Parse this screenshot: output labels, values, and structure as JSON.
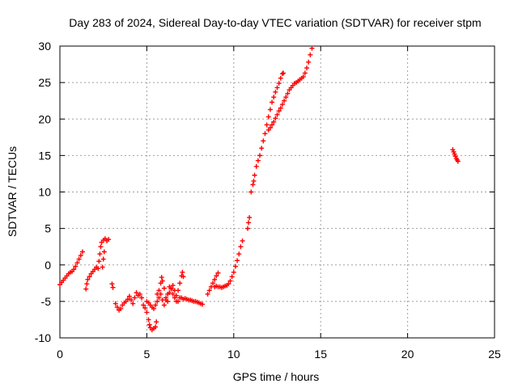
{
  "chart_data": {
    "type": "scatter",
    "title": "Day 283 of 2024, Sidereal Day-to-day VTEC variation (SDTVAR) for receiver stpm",
    "xlabel": "GPS time / hours",
    "ylabel": "SDTVAR / TECUs",
    "xlim": [
      0,
      25
    ],
    "ylim": [
      -10,
      30
    ],
    "xticks": [
      0,
      5,
      10,
      15,
      20,
      25
    ],
    "yticks": [
      -10,
      -5,
      0,
      5,
      10,
      15,
      20,
      25,
      30
    ],
    "grid": true,
    "marker": "+",
    "color": "#ff0000",
    "series": [
      {
        "points": [
          [
            0.0,
            -2.7
          ],
          [
            0.1,
            -2.4
          ],
          [
            0.2,
            -2.1
          ],
          [
            0.3,
            -1.8
          ],
          [
            0.4,
            -1.5
          ],
          [
            0.5,
            -1.2
          ],
          [
            0.6,
            -1.0
          ],
          [
            0.7,
            -0.9
          ],
          [
            0.8,
            -0.6
          ],
          [
            0.9,
            -0.2
          ],
          [
            1.0,
            0.3
          ],
          [
            1.1,
            0.8
          ],
          [
            1.2,
            1.3
          ],
          [
            1.3,
            1.8
          ],
          [
            1.5,
            -3.3
          ],
          [
            1.55,
            -2.6
          ],
          [
            1.6,
            -2.0
          ],
          [
            1.7,
            -1.6
          ],
          [
            1.8,
            -1.2
          ],
          [
            1.9,
            -0.9
          ],
          [
            2.0,
            -0.6
          ],
          [
            2.1,
            -0.3
          ],
          [
            2.2,
            -0.5
          ],
          [
            2.25,
            0.5
          ],
          [
            2.3,
            1.5
          ],
          [
            2.35,
            2.5
          ],
          [
            2.4,
            3.1
          ],
          [
            2.5,
            3.4
          ],
          [
            2.6,
            3.6
          ],
          [
            2.7,
            3.3
          ],
          [
            2.8,
            3.5
          ],
          [
            2.45,
            -0.3
          ],
          [
            2.5,
            0.8
          ],
          [
            2.55,
            1.8
          ],
          [
            3.0,
            -2.6
          ],
          [
            3.05,
            -3.1
          ],
          [
            3.2,
            -5.3
          ],
          [
            3.3,
            -5.8
          ],
          [
            3.4,
            -6.2
          ],
          [
            3.5,
            -6.0
          ],
          [
            3.6,
            -5.5
          ],
          [
            3.7,
            -5.2
          ],
          [
            3.8,
            -5.0
          ],
          [
            3.9,
            -4.7
          ],
          [
            4.0,
            -4.3
          ],
          [
            4.1,
            -4.8
          ],
          [
            4.2,
            -5.3
          ],
          [
            4.3,
            -4.5
          ],
          [
            4.4,
            -3.8
          ],
          [
            4.5,
            -4.2
          ],
          [
            4.6,
            -4.0
          ],
          [
            4.7,
            -4.5
          ],
          [
            4.8,
            -5.5
          ],
          [
            4.9,
            -5.9
          ],
          [
            5.0,
            -6.5
          ],
          [
            5.1,
            -7.5
          ],
          [
            5.15,
            -8.2
          ],
          [
            5.2,
            -8.6
          ],
          [
            5.3,
            -8.9
          ],
          [
            5.4,
            -8.7
          ],
          [
            5.5,
            -8.5
          ],
          [
            5.55,
            -7.8
          ],
          [
            5.0,
            -5.0
          ],
          [
            5.1,
            -5.2
          ],
          [
            5.2,
            -5.5
          ],
          [
            5.3,
            -5.8
          ],
          [
            5.4,
            -6.0
          ],
          [
            5.5,
            -5.5
          ],
          [
            5.6,
            -5.0
          ],
          [
            5.7,
            -4.5
          ],
          [
            5.8,
            -4.0
          ],
          [
            5.9,
            -4.8
          ],
          [
            6.0,
            -5.5
          ],
          [
            6.1,
            -4.8
          ],
          [
            6.2,
            -4.0
          ],
          [
            6.3,
            -3.0
          ],
          [
            6.4,
            -3.2
          ],
          [
            6.5,
            -4.0
          ],
          [
            6.6,
            -4.5
          ],
          [
            6.7,
            -5.0
          ],
          [
            6.8,
            -5.0
          ],
          [
            6.9,
            -4.5
          ],
          [
            7.0,
            -4.5
          ],
          [
            7.1,
            -4.7
          ],
          [
            5.6,
            -4.0
          ],
          [
            5.7,
            -3.5
          ],
          [
            5.8,
            -2.5
          ],
          [
            5.85,
            -1.7
          ],
          [
            5.9,
            -2.2
          ],
          [
            6.0,
            -3.2
          ],
          [
            6.1,
            -4.5
          ],
          [
            6.2,
            -5.0
          ],
          [
            6.3,
            -3.8
          ],
          [
            6.4,
            -3.3
          ],
          [
            6.5,
            -2.8
          ],
          [
            6.6,
            -3.5
          ],
          [
            6.7,
            -4.2
          ],
          [
            6.8,
            -3.5
          ],
          [
            6.9,
            -2.5
          ],
          [
            7.0,
            -1.5
          ],
          [
            7.05,
            -1.0
          ],
          [
            7.1,
            -1.6
          ],
          [
            7.2,
            -4.6
          ],
          [
            7.3,
            -4.7
          ],
          [
            7.4,
            -4.8
          ],
          [
            7.5,
            -4.8
          ],
          [
            7.6,
            -4.9
          ],
          [
            7.7,
            -5.0
          ],
          [
            7.8,
            -5.0
          ],
          [
            7.9,
            -5.1
          ],
          [
            8.0,
            -5.2
          ],
          [
            8.1,
            -5.3
          ],
          [
            8.2,
            -5.4
          ],
          [
            8.5,
            -4.0
          ],
          [
            8.6,
            -3.5
          ],
          [
            8.7,
            -3.0
          ],
          [
            8.8,
            -2.5
          ],
          [
            8.9,
            -2.0
          ],
          [
            9.0,
            -1.5
          ],
          [
            9.1,
            -1.1
          ],
          [
            8.9,
            -3.0
          ],
          [
            9.0,
            -2.9
          ],
          [
            9.1,
            -3.0
          ],
          [
            9.2,
            -3.0
          ],
          [
            9.3,
            -3.1
          ],
          [
            9.4,
            -3.0
          ],
          [
            9.5,
            -2.9
          ],
          [
            9.6,
            -2.8
          ],
          [
            9.7,
            -2.6
          ],
          [
            9.8,
            -2.2
          ],
          [
            9.9,
            -1.6
          ],
          [
            10.0,
            -1.0
          ],
          [
            10.1,
            -0.2
          ],
          [
            10.2,
            0.6
          ],
          [
            10.3,
            1.5
          ],
          [
            10.4,
            2.5
          ],
          [
            10.5,
            3.3
          ],
          [
            10.8,
            5.0
          ],
          [
            10.85,
            5.8
          ],
          [
            10.9,
            6.5
          ],
          [
            11.0,
            10.0
          ],
          [
            11.1,
            11.0
          ],
          [
            11.15,
            11.5
          ],
          [
            11.2,
            12.3
          ],
          [
            11.3,
            13.5
          ],
          [
            11.4,
            14.3
          ],
          [
            11.5,
            15.0
          ],
          [
            11.6,
            16.0
          ],
          [
            11.7,
            17.0
          ],
          [
            11.8,
            18.0
          ],
          [
            11.9,
            19.2
          ],
          [
            12.0,
            20.3
          ],
          [
            12.1,
            21.3
          ],
          [
            12.2,
            22.3
          ],
          [
            12.3,
            23.0
          ],
          [
            12.4,
            23.7
          ],
          [
            12.5,
            24.3
          ],
          [
            12.6,
            24.9
          ],
          [
            12.7,
            25.6
          ],
          [
            12.8,
            26.2
          ],
          [
            12.85,
            26.3
          ],
          [
            12.0,
            18.5
          ],
          [
            12.1,
            18.8
          ],
          [
            12.2,
            19.2
          ],
          [
            12.3,
            19.6
          ],
          [
            12.4,
            20.1
          ],
          [
            12.5,
            20.6
          ],
          [
            12.6,
            21.1
          ],
          [
            12.7,
            21.5
          ],
          [
            12.8,
            22.0
          ],
          [
            12.9,
            22.5
          ],
          [
            13.0,
            23.0
          ],
          [
            13.1,
            23.5
          ],
          [
            13.2,
            24.0
          ],
          [
            13.3,
            24.3
          ],
          [
            13.4,
            24.6
          ],
          [
            13.5,
            24.9
          ],
          [
            13.6,
            25.0
          ],
          [
            13.7,
            25.2
          ],
          [
            13.8,
            25.4
          ],
          [
            13.9,
            25.6
          ],
          [
            14.0,
            25.8
          ],
          [
            14.1,
            26.3
          ],
          [
            14.2,
            27.0
          ],
          [
            14.3,
            27.8
          ],
          [
            14.4,
            28.8
          ],
          [
            14.5,
            29.7
          ],
          [
            22.6,
            15.8
          ],
          [
            22.65,
            15.5
          ],
          [
            22.7,
            15.2
          ],
          [
            22.75,
            14.9
          ],
          [
            22.8,
            14.6
          ],
          [
            22.85,
            14.4
          ],
          [
            22.9,
            14.2
          ]
        ]
      }
    ]
  }
}
